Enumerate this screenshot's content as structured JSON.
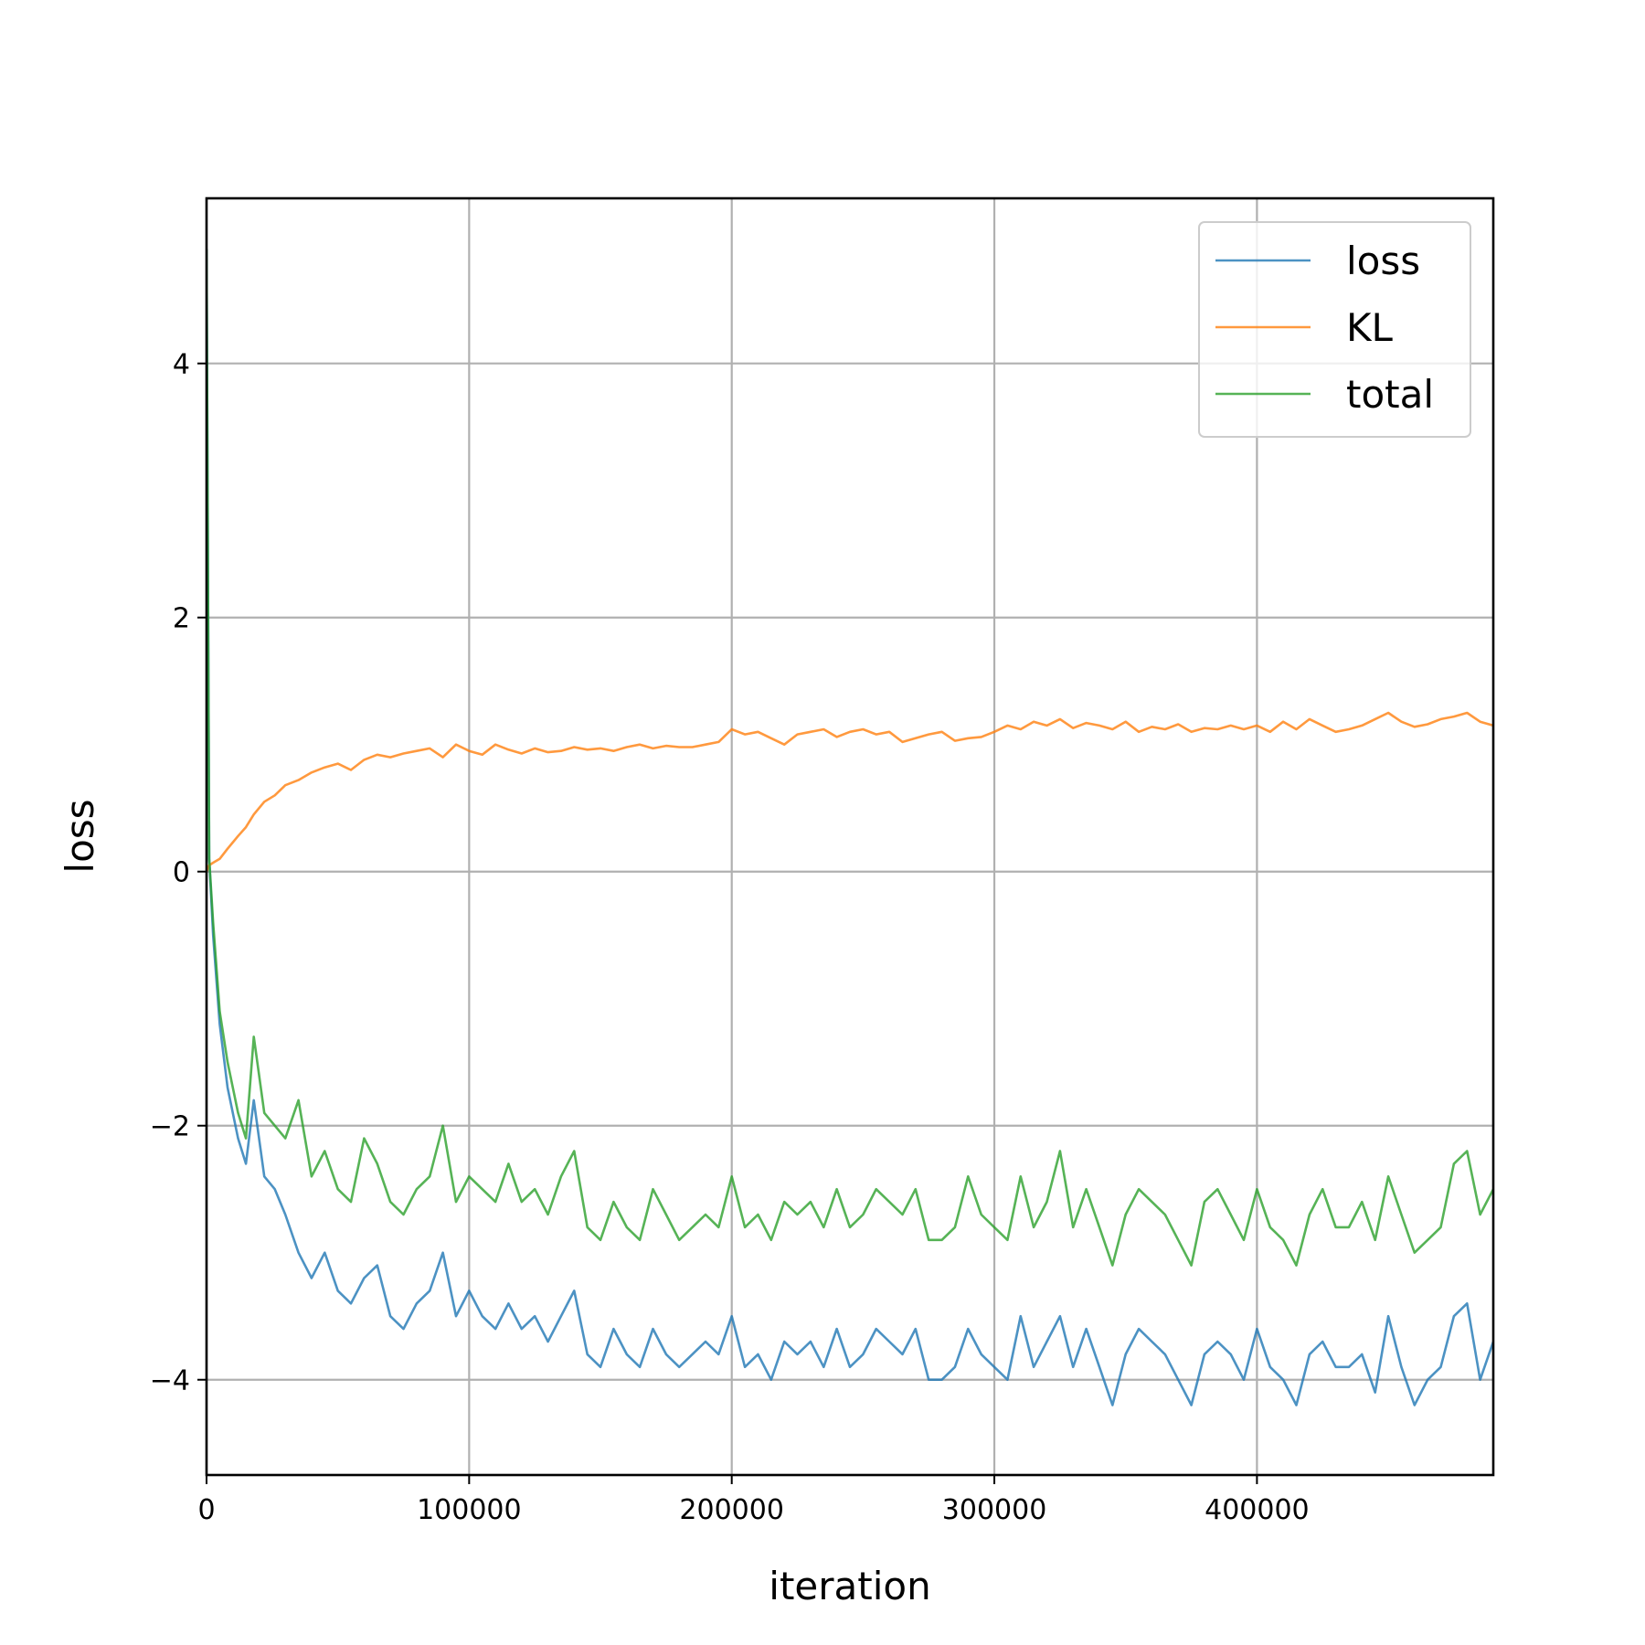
{
  "chart_data": {
    "type": "line",
    "xlabel": "iteration",
    "ylabel": "loss",
    "xlim": [
      0,
      490000
    ],
    "ylim": [
      -4.75,
      5.3
    ],
    "xticks": [
      0,
      100000,
      200000,
      300000,
      400000
    ],
    "xtick_labels": [
      "0",
      "100000",
      "200000",
      "300000",
      "400000"
    ],
    "yticks": [
      -4,
      -2,
      0,
      2,
      4
    ],
    "ytick_labels": [
      "−4",
      "−2",
      "0",
      "2",
      "4"
    ],
    "grid": true,
    "legend_position": "top-right",
    "series": [
      {
        "name": "loss",
        "color": "#1f77b4",
        "x": [
          0,
          1000,
          2500,
          5000,
          8000,
          12000,
          15000,
          18000,
          22000,
          26000,
          30000,
          35000,
          40000,
          45000,
          50000,
          55000,
          60000,
          65000,
          70000,
          75000,
          80000,
          85000,
          90000,
          95000,
          100000,
          105000,
          110000,
          115000,
          120000,
          125000,
          130000,
          135000,
          140000,
          145000,
          150000,
          155000,
          160000,
          165000,
          170000,
          175000,
          180000,
          185000,
          190000,
          195000,
          200000,
          205000,
          210000,
          215000,
          220000,
          225000,
          230000,
          235000,
          240000,
          245000,
          250000,
          255000,
          260000,
          265000,
          270000,
          275000,
          280000,
          285000,
          290000,
          295000,
          300000,
          305000,
          310000,
          315000,
          320000,
          325000,
          330000,
          335000,
          340000,
          345000,
          350000,
          355000,
          360000,
          365000,
          370000,
          375000,
          380000,
          385000,
          390000,
          395000,
          400000,
          405000,
          410000,
          415000,
          420000,
          425000,
          430000,
          435000,
          440000,
          445000,
          450000,
          455000,
          460000,
          465000,
          470000,
          475000,
          480000,
          485000,
          490000
        ],
        "values": [
          4.9,
          0.1,
          -0.5,
          -1.2,
          -1.7,
          -2.1,
          -2.3,
          -1.8,
          -2.4,
          -2.5,
          -2.7,
          -3.0,
          -3.2,
          -3.0,
          -3.3,
          -3.4,
          -3.2,
          -3.1,
          -3.5,
          -3.6,
          -3.4,
          -3.3,
          -3.0,
          -3.5,
          -3.3,
          -3.5,
          -3.6,
          -3.4,
          -3.6,
          -3.5,
          -3.7,
          -3.5,
          -3.3,
          -3.8,
          -3.9,
          -3.6,
          -3.8,
          -3.9,
          -3.6,
          -3.8,
          -3.9,
          -3.8,
          -3.7,
          -3.8,
          -3.5,
          -3.9,
          -3.8,
          -4.0,
          -3.7,
          -3.8,
          -3.7,
          -3.9,
          -3.6,
          -3.9,
          -3.8,
          -3.6,
          -3.7,
          -3.8,
          -3.6,
          -4.0,
          -4.0,
          -3.9,
          -3.6,
          -3.8,
          -3.9,
          -4.0,
          -3.5,
          -3.9,
          -3.7,
          -3.5,
          -3.9,
          -3.6,
          -3.9,
          -4.2,
          -3.8,
          -3.6,
          -3.7,
          -3.8,
          -4.0,
          -4.2,
          -3.8,
          -3.7,
          -3.8,
          -4.0,
          -3.6,
          -3.9,
          -4.0,
          -4.2,
          -3.8,
          -3.7,
          -3.9,
          -3.9,
          -3.8,
          -4.1,
          -3.5,
          -3.9,
          -4.2,
          -4.0,
          -3.9,
          -3.5,
          -3.4,
          -4.0,
          -3.7
        ]
      },
      {
        "name": "KL",
        "color": "#ff7f0e",
        "x": [
          0,
          1000,
          2500,
          5000,
          8000,
          12000,
          15000,
          18000,
          22000,
          26000,
          30000,
          35000,
          40000,
          45000,
          50000,
          55000,
          60000,
          65000,
          70000,
          75000,
          80000,
          85000,
          90000,
          95000,
          100000,
          105000,
          110000,
          115000,
          120000,
          125000,
          130000,
          135000,
          140000,
          145000,
          150000,
          155000,
          160000,
          165000,
          170000,
          175000,
          180000,
          185000,
          190000,
          195000,
          200000,
          205000,
          210000,
          215000,
          220000,
          225000,
          230000,
          235000,
          240000,
          245000,
          250000,
          255000,
          260000,
          265000,
          270000,
          275000,
          280000,
          285000,
          290000,
          295000,
          300000,
          305000,
          310000,
          315000,
          320000,
          325000,
          330000,
          335000,
          340000,
          345000,
          350000,
          355000,
          360000,
          365000,
          370000,
          375000,
          380000,
          385000,
          390000,
          395000,
          400000,
          405000,
          410000,
          415000,
          420000,
          425000,
          430000,
          435000,
          440000,
          445000,
          450000,
          455000,
          460000,
          465000,
          470000,
          475000,
          480000,
          485000,
          490000
        ],
        "values": [
          0.0,
          0.05,
          0.07,
          0.1,
          0.18,
          0.28,
          0.35,
          0.45,
          0.55,
          0.6,
          0.68,
          0.72,
          0.78,
          0.82,
          0.85,
          0.8,
          0.88,
          0.92,
          0.9,
          0.93,
          0.95,
          0.97,
          0.9,
          1.0,
          0.95,
          0.92,
          1.0,
          0.96,
          0.93,
          0.97,
          0.94,
          0.95,
          0.98,
          0.96,
          0.97,
          0.95,
          0.98,
          1.0,
          0.97,
          0.99,
          0.98,
          0.98,
          1.0,
          1.02,
          1.12,
          1.08,
          1.1,
          1.05,
          1.0,
          1.08,
          1.1,
          1.12,
          1.06,
          1.1,
          1.12,
          1.08,
          1.1,
          1.02,
          1.05,
          1.08,
          1.1,
          1.03,
          1.05,
          1.06,
          1.1,
          1.15,
          1.12,
          1.18,
          1.15,
          1.2,
          1.13,
          1.17,
          1.15,
          1.12,
          1.18,
          1.1,
          1.14,
          1.12,
          1.16,
          1.1,
          1.13,
          1.12,
          1.15,
          1.12,
          1.15,
          1.1,
          1.18,
          1.12,
          1.2,
          1.15,
          1.1,
          1.12,
          1.15,
          1.2,
          1.25,
          1.18,
          1.14,
          1.16,
          1.2,
          1.22,
          1.25,
          1.18,
          1.15
        ]
      },
      {
        "name": "total",
        "color": "#2ca02c",
        "x": [
          0,
          1000,
          2500,
          5000,
          8000,
          12000,
          15000,
          18000,
          22000,
          26000,
          30000,
          35000,
          40000,
          45000,
          50000,
          55000,
          60000,
          65000,
          70000,
          75000,
          80000,
          85000,
          90000,
          95000,
          100000,
          105000,
          110000,
          115000,
          120000,
          125000,
          130000,
          135000,
          140000,
          145000,
          150000,
          155000,
          160000,
          165000,
          170000,
          175000,
          180000,
          185000,
          190000,
          195000,
          200000,
          205000,
          210000,
          215000,
          220000,
          225000,
          230000,
          235000,
          240000,
          245000,
          250000,
          255000,
          260000,
          265000,
          270000,
          275000,
          280000,
          285000,
          290000,
          295000,
          300000,
          305000,
          310000,
          315000,
          320000,
          325000,
          330000,
          335000,
          340000,
          345000,
          350000,
          355000,
          360000,
          365000,
          370000,
          375000,
          380000,
          385000,
          390000,
          395000,
          400000,
          405000,
          410000,
          415000,
          420000,
          425000,
          430000,
          435000,
          440000,
          445000,
          450000,
          455000,
          460000,
          465000,
          470000,
          475000,
          480000,
          485000,
          490000
        ],
        "values": [
          4.9,
          0.1,
          -0.4,
          -1.1,
          -1.5,
          -1.9,
          -2.1,
          -1.3,
          -1.9,
          -2.0,
          -2.1,
          -1.8,
          -2.4,
          -2.2,
          -2.5,
          -2.6,
          -2.1,
          -2.3,
          -2.6,
          -2.7,
          -2.5,
          -2.4,
          -2.0,
          -2.6,
          -2.4,
          -2.5,
          -2.6,
          -2.3,
          -2.6,
          -2.5,
          -2.7,
          -2.4,
          -2.2,
          -2.8,
          -2.9,
          -2.6,
          -2.8,
          -2.9,
          -2.5,
          -2.7,
          -2.9,
          -2.8,
          -2.7,
          -2.8,
          -2.4,
          -2.8,
          -2.7,
          -2.9,
          -2.6,
          -2.7,
          -2.6,
          -2.8,
          -2.5,
          -2.8,
          -2.7,
          -2.5,
          -2.6,
          -2.7,
          -2.5,
          -2.9,
          -2.9,
          -2.8,
          -2.4,
          -2.7,
          -2.8,
          -2.9,
          -2.4,
          -2.8,
          -2.6,
          -2.2,
          -2.8,
          -2.5,
          -2.8,
          -3.1,
          -2.7,
          -2.5,
          -2.6,
          -2.7,
          -2.9,
          -3.1,
          -2.6,
          -2.5,
          -2.7,
          -2.9,
          -2.5,
          -2.8,
          -2.9,
          -3.1,
          -2.7,
          -2.5,
          -2.8,
          -2.8,
          -2.6,
          -2.9,
          -2.4,
          -2.7,
          -3.0,
          -2.9,
          -2.8,
          -2.3,
          -2.2,
          -2.7,
          -2.5
        ]
      }
    ]
  }
}
